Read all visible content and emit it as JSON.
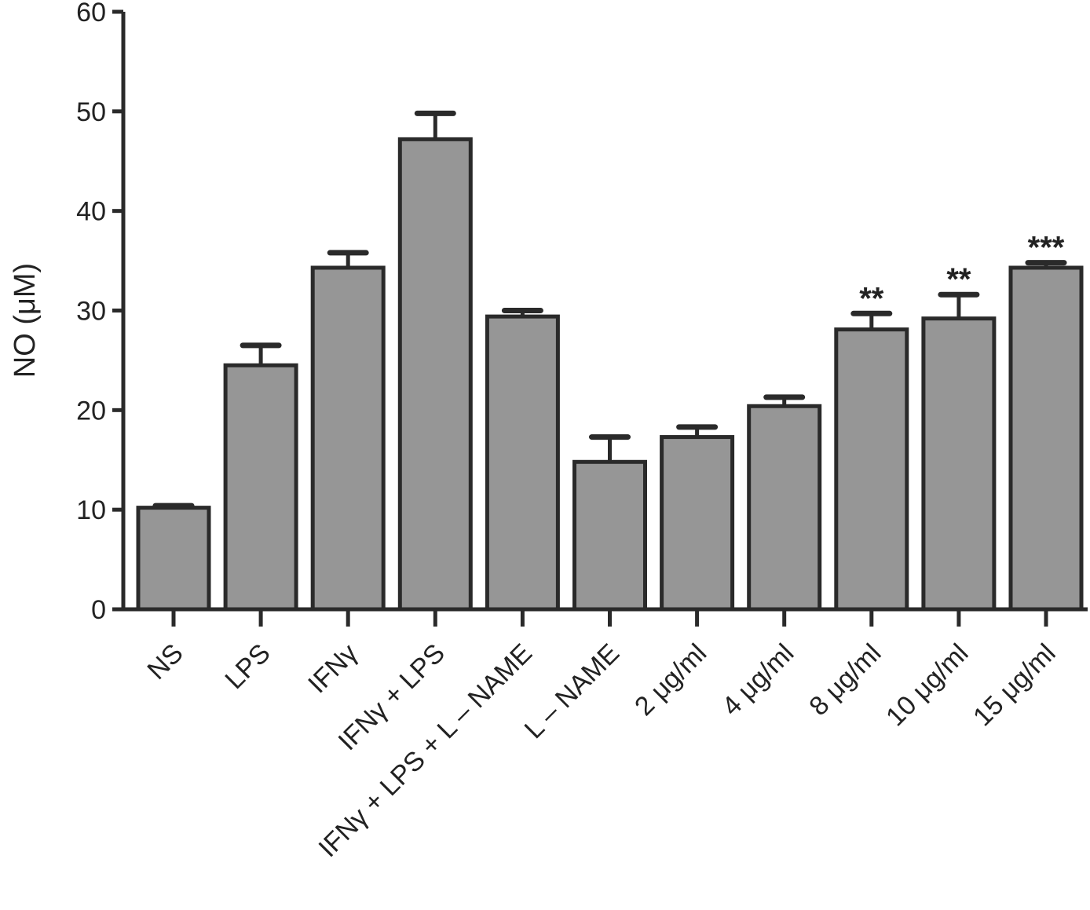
{
  "chart_data": {
    "type": "bar",
    "title": "",
    "xlabel": "",
    "ylabel": "NO (μM)",
    "ylim": [
      0,
      60
    ],
    "yticks": [
      0,
      10,
      20,
      30,
      40,
      50,
      60
    ],
    "grid": false,
    "categories": [
      "NS",
      "LPS",
      "IFNγ",
      "IFNγ + LPS",
      "IFNγ + LPS + L – NAME",
      "L – NAME",
      "2 μg/ml",
      "4 μg/ml",
      "8 μg/ml",
      "10 μg/ml",
      "15 μg/ml"
    ],
    "values": [
      10.2,
      24.5,
      34.3,
      47.2,
      29.4,
      14.8,
      17.3,
      20.4,
      28.1,
      29.2,
      34.3
    ],
    "errors": [
      0.2,
      2.0,
      1.5,
      2.6,
      0.6,
      2.5,
      1.0,
      0.9,
      1.6,
      2.4,
      0.5
    ],
    "annotations": [
      "",
      "",
      "",
      "",
      "",
      "",
      "",
      "",
      "**",
      "**",
      "***"
    ],
    "bar_color": "#969696",
    "edge_color": "#2a2a2a"
  }
}
